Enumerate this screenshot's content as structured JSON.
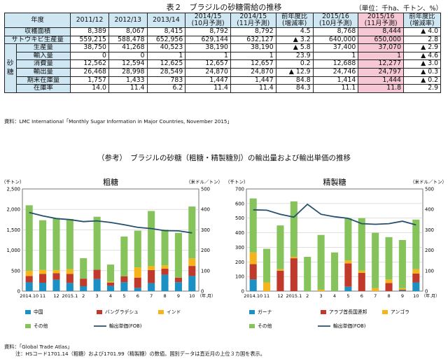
{
  "table": {
    "title": "表２　ブラジルの砂糖需給の推移",
    "unit": "（単位：千ha、千トン、%）",
    "header_label": "年度",
    "group_label": "砂糖",
    "columns": [
      "2011/12",
      "2012/13",
      "2013/14",
      "2014/15|(10月予測)",
      "2014/15|(11月予測)",
      "前年度比|(増減率)",
      "2015/16|(10月予測)",
      "2015/16|(11月予測)",
      "前年度比|(増減率)"
    ],
    "rows": [
      {
        "label": "収穫面積",
        "grouped": false,
        "values": [
          "8,389",
          "8,067",
          "8,415",
          "8,792",
          "8,792",
          "4.5",
          "8,768",
          "8,444",
          "▲ 4.0"
        ]
      },
      {
        "label": "サトウキビ生産量",
        "grouped": false,
        "values": [
          "559,215",
          "588,478",
          "652,956",
          "629,144",
          "632,127",
          "▲ 3.2",
          "640,000",
          "650,000",
          "2.8"
        ]
      },
      {
        "label": "生産量",
        "grouped": true,
        "values": [
          "38,750",
          "41,268",
          "40,523",
          "38,190",
          "38,190",
          "▲ 5.8",
          "37,400",
          "37,070",
          "▲ 2.9"
        ]
      },
      {
        "label": "輸入量",
        "grouped": true,
        "values": [
          "0",
          "0",
          "1",
          "1",
          "1",
          "23.9",
          "1",
          "1",
          "▲ 4.6"
        ]
      },
      {
        "label": "消費量",
        "grouped": true,
        "values": [
          "12,562",
          "12,594",
          "12,625",
          "12,657",
          "12,657",
          "0.2",
          "12,688",
          "12,277",
          "▲ 3.0"
        ]
      },
      {
        "label": "輸出量",
        "grouped": true,
        "values": [
          "26,468",
          "28,998",
          "28,549",
          "24,870",
          "24,870",
          "▲ 12.9",
          "24,746",
          "24,797",
          "▲ 0.3"
        ]
      },
      {
        "label": "期末在庫量",
        "grouped": true,
        "values": [
          "1,757",
          "1,433",
          "783",
          "1,447",
          "1,447",
          "84.8",
          "1,414",
          "1,444",
          "▲ 0.2"
        ]
      },
      {
        "label": "在庫率",
        "grouped": true,
        "values": [
          "14.0",
          "11.4",
          "6.2",
          "11.4",
          "11.4",
          "84.3",
          "11.1",
          "11.8",
          "2.9"
        ]
      }
    ],
    "source": "資料：LMC International「Monthly Sugar Information in Major Countries, November 2015」"
  },
  "charts_section": {
    "title": "（参考）　ブラジルの砂糖（粗糖・精製糖別）の輸出量および輸出単価の推移",
    "source": "資料：「Global Trade Atlas」",
    "note": "注：HSコード1701.14（粗糖）および1701.99（精製糖）の数値。国別データは直近月の上位３カ国を表示。"
  },
  "chart_data": [
    {
      "type": "bar",
      "title": "粗糖",
      "ylabel": "（千トン）",
      "y2label": "（米ドル／トン）",
      "xunit": "（年.月）",
      "ylim": [
        0,
        2500
      ],
      "y2lim": [
        0,
        500
      ],
      "yticks": [
        "0",
        "500",
        "1,000",
        "1,500",
        "2,000",
        "2,500"
      ],
      "y2ticks": [
        "0",
        "100",
        "200",
        "300",
        "400",
        "500"
      ],
      "categories": [
        "2014.10",
        "11",
        "12",
        "2015.1",
        "2",
        "3",
        "4",
        "5",
        "6",
        "7",
        "8",
        "9",
        "10"
      ],
      "stacked_series": [
        {
          "name": "中国",
          "color": "#1b90c4",
          "values": [
            215,
            205,
            280,
            200,
            120,
            295,
            130,
            220,
            80,
            195,
            400,
            220,
            370
          ]
        },
        {
          "name": "バングラデシュ",
          "color": "#c0392b",
          "values": [
            155,
            215,
            160,
            220,
            185,
            230,
            80,
            140,
            250,
            320,
            150,
            110,
            245
          ]
        },
        {
          "name": "インド",
          "color": "#f5b41b",
          "values": [
            130,
            100,
            75,
            115,
            0,
            0,
            25,
            0,
            250,
            100,
            80,
            0,
            185
          ]
        },
        {
          "name": "その他",
          "color": "#86c35a",
          "values": [
            1600,
            1215,
            1270,
            1230,
            500,
            1295,
            415,
            975,
            900,
            1345,
            875,
            1095,
            1270
          ]
        }
      ],
      "line_series": {
        "name": "輸出単価(FOB)",
        "color": "#24506e",
        "values": [
          385,
          368,
          355,
          350,
          340,
          344,
          336,
          325,
          312,
          306,
          296,
          295,
          285
        ]
      },
      "legend": [
        "中国",
        "バングラデシュ",
        "インド",
        "その他",
        "輸出単価(FOB)"
      ]
    },
    {
      "type": "bar",
      "title": "精製糖",
      "ylabel": "（千トン）",
      "y2label": "（米ドル／トン）",
      "xunit": "（年.月）",
      "ylim": [
        0,
        700
      ],
      "y2lim": [
        0,
        500
      ],
      "yticks": [
        "0",
        "100",
        "200",
        "300",
        "400",
        "500",
        "600",
        "700"
      ],
      "y2ticks": [
        "0",
        "100",
        "200",
        "300",
        "400",
        "500"
      ],
      "categories": [
        "2014.10",
        "11",
        "12",
        "2015.1",
        "2",
        "3",
        "4",
        "5",
        "6",
        "7",
        "8",
        "9",
        "10"
      ],
      "stacked_series": [
        {
          "name": "ガーナ",
          "color": "#1b90c4",
          "values": [
            80,
            0,
            0,
            0,
            0,
            0,
            0,
            30,
            0,
            0,
            0,
            5,
            60
          ]
        },
        {
          "name": "アラブ首長国連邦",
          "color": "#c0392b",
          "values": [
            105,
            0,
            140,
            225,
            0,
            0,
            0,
            160,
            125,
            0,
            55,
            5,
            60
          ]
        },
        {
          "name": "アンゴラ",
          "color": "#f5b41b",
          "values": [
            80,
            60,
            10,
            10,
            0,
            10,
            0,
            20,
            15,
            20,
            25,
            10,
            30
          ]
        },
        {
          "name": "その他",
          "color": "#86c35a",
          "values": [
            370,
            230,
            300,
            380,
            235,
            375,
            265,
            290,
            360,
            380,
            290,
            330,
            340
          ]
        }
      ],
      "line_series": {
        "name": "輸出単価(FOB)",
        "color": "#24506e",
        "values": [
          398,
          396,
          376,
          362,
          425,
          376,
          364,
          356,
          330,
          327,
          330,
          342,
          324
        ]
      },
      "legend": [
        "ガーナ",
        "アラブ首長国連邦",
        "アンゴラ",
        "その他",
        "輸出単価(FOB)"
      ]
    }
  ]
}
